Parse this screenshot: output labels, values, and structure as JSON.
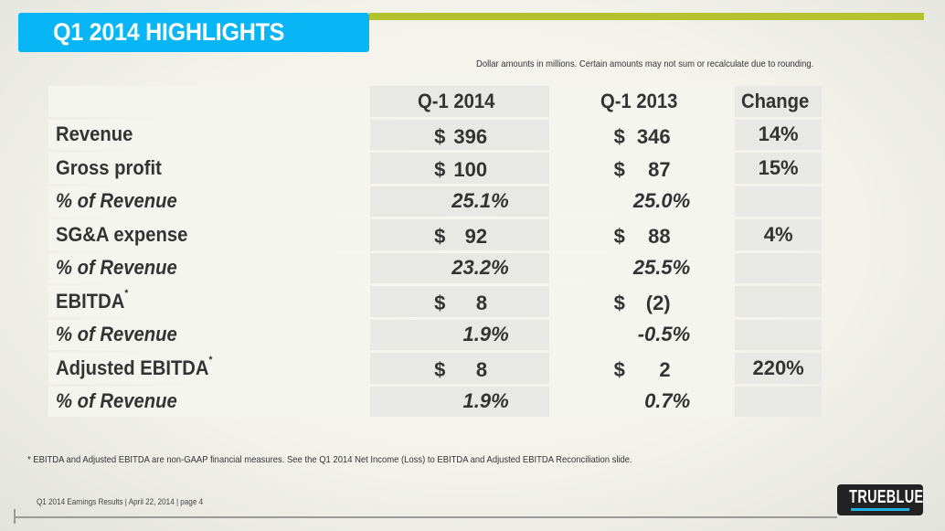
{
  "title": "Q1 2014 HIGHLIGHTS",
  "note": "Dollar amounts in millions. Certain amounts may not sum or recalculate due to rounding.",
  "colors": {
    "title_bar": "#08b5f5",
    "accent_line": "#b3c22e",
    "logo_bar": "#1fb2e6"
  },
  "table": {
    "headers": [
      "",
      "Q-1 2014",
      "Q-1 2013",
      "Change"
    ],
    "rows": [
      {
        "label": "Revenue",
        "sup": "",
        "q2014": {
          "sym": "$",
          "val": "396"
        },
        "q2013": {
          "sym": "$",
          "val": "346"
        },
        "change": "14%"
      },
      {
        "label": "Gross profit",
        "sup": "",
        "q2014": {
          "sym": "$",
          "val": "100"
        },
        "q2013": {
          "sym": "$",
          "val": "87"
        },
        "change": "15%"
      },
      {
        "label": "% of Revenue",
        "q2014": "25.1%",
        "q2013": "25.0%",
        "change": ""
      },
      {
        "label": "SG&A expense",
        "sup": "",
        "q2014": {
          "sym": "$",
          "val": "92"
        },
        "q2013": {
          "sym": "$",
          "val": "88"
        },
        "change": "4%"
      },
      {
        "label": "% of Revenue",
        "q2014": "23.2%",
        "q2013": "25.5%",
        "change": ""
      },
      {
        "label": "EBITDA",
        "sup": "*",
        "q2014": {
          "sym": "$",
          "val": "8"
        },
        "q2013": {
          "sym": "$",
          "val": "(2)"
        },
        "change": ""
      },
      {
        "label": "% of Revenue",
        "q2014": "1.9%",
        "q2013": "-0.5%",
        "change": ""
      },
      {
        "label": "Adjusted EBITDA",
        "sup": "*",
        "q2014": {
          "sym": "$",
          "val": "8"
        },
        "q2013": {
          "sym": "$",
          "val": "2"
        },
        "change": "220%"
      },
      {
        "label": "% of Revenue",
        "q2014": "1.9%",
        "q2013": "0.7%",
        "change": ""
      }
    ]
  },
  "footnote": "* EBITDA and Adjusted EBITDA are non-GAAP financial measures. See the Q1 2014 Net Income (Loss) to EBITDA and Adjusted EBITDA Reconciliation slide.",
  "footer": "Q1 2014 Earnings Results | April 22, 2014  | page 4",
  "logo": {
    "text": "TRUEBLUE"
  }
}
